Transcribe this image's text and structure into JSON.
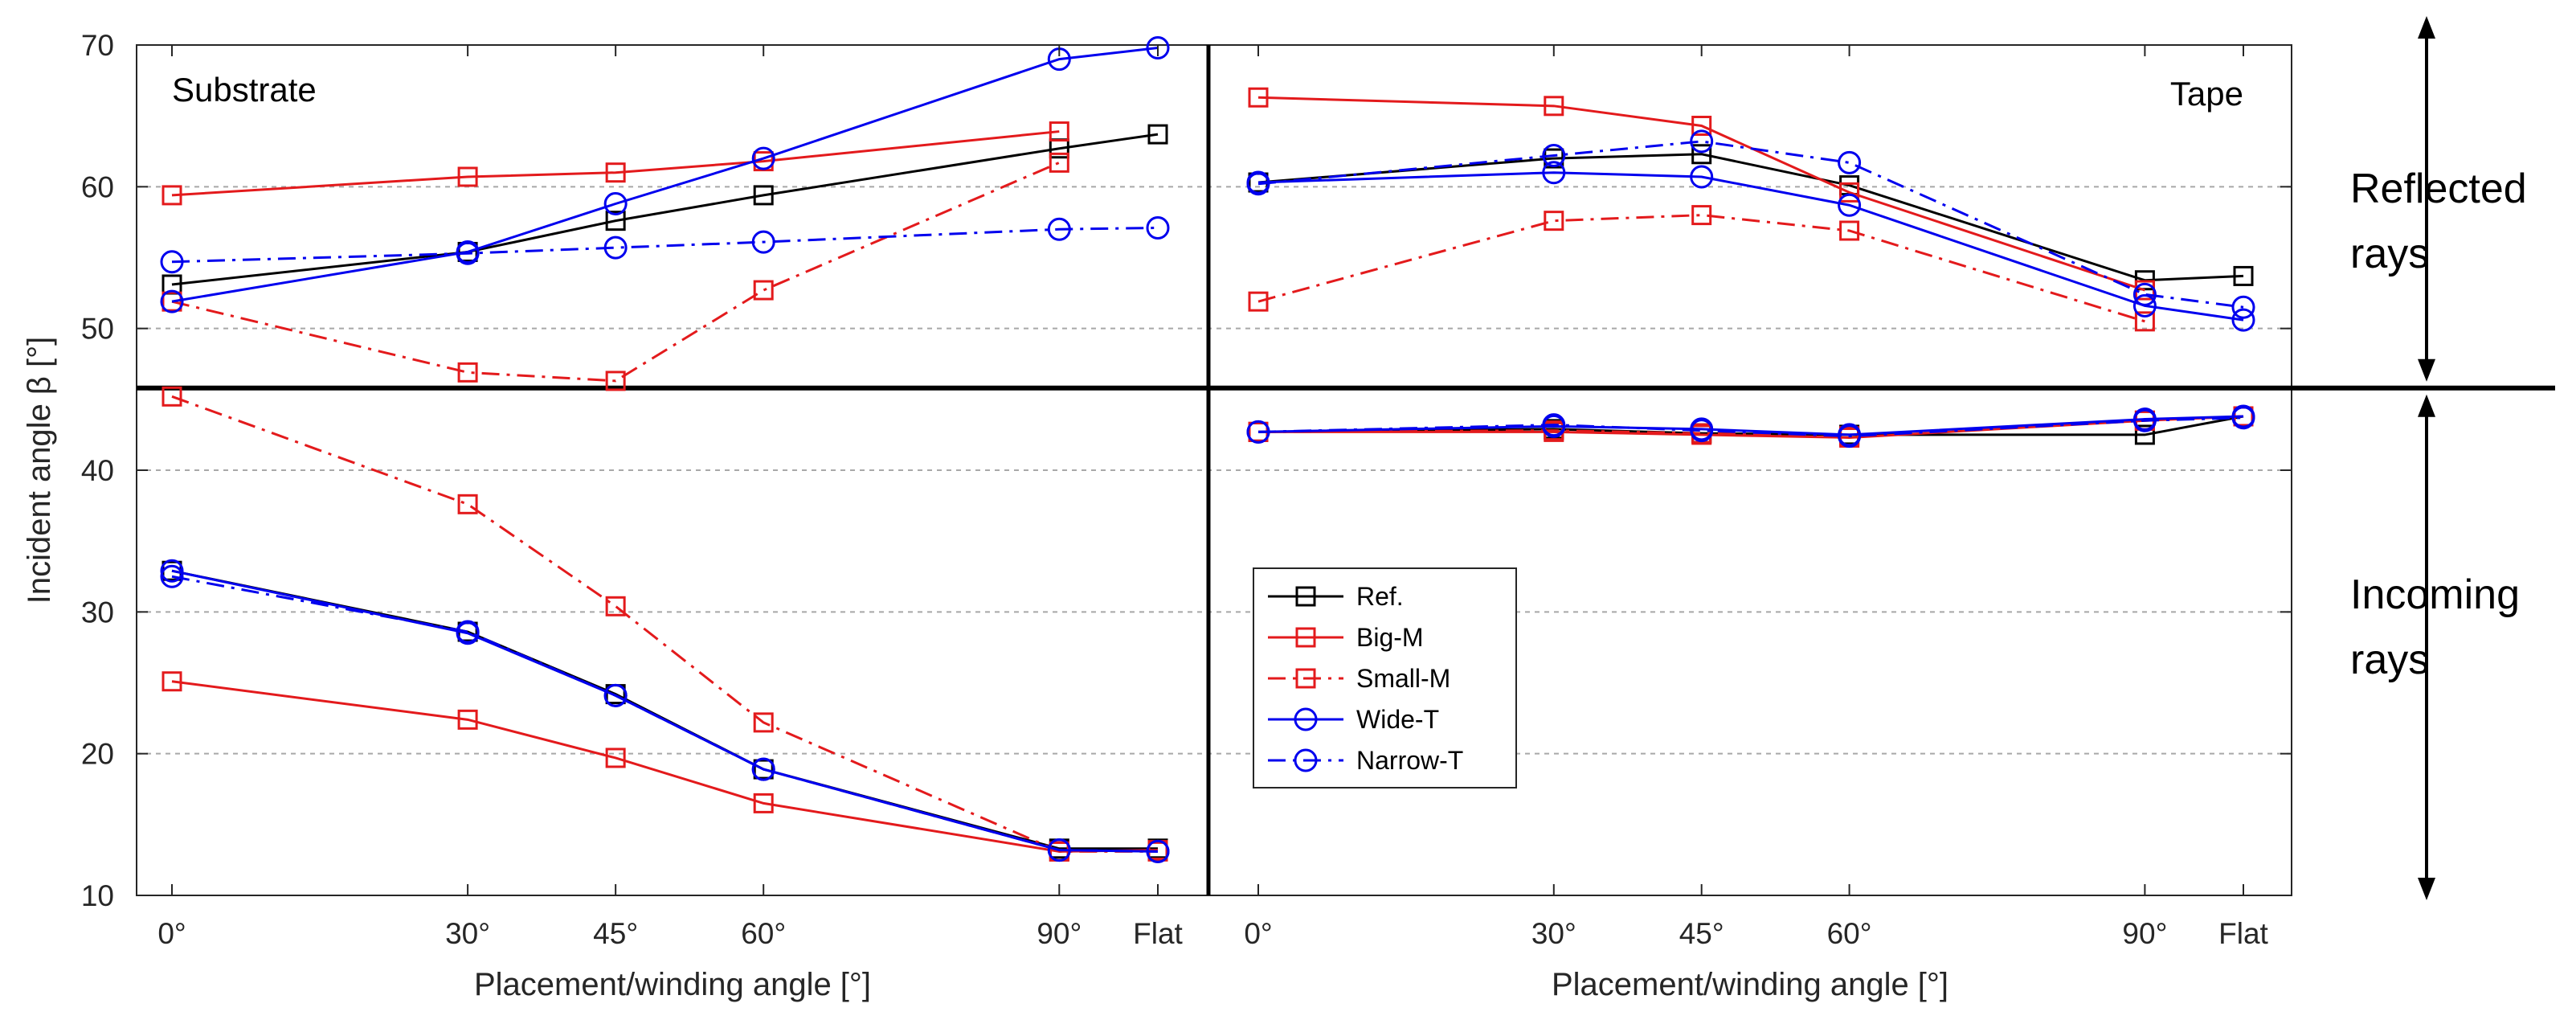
{
  "chart_data": {
    "type": "line",
    "ylabel": "Incident angle β [°]",
    "ylim": [
      10,
      70
    ],
    "yticks": [
      10,
      20,
      30,
      40,
      50,
      60,
      70
    ],
    "xlabel": "Placement/winding angle [°]",
    "categories": [
      "0°",
      "30°",
      "45°",
      "60°",
      "90°",
      "Flat"
    ],
    "x_positions": [
      0,
      30,
      45,
      60,
      90,
      100
    ],
    "split_value": 45.8,
    "side_labels": {
      "reflected": [
        "Reflected",
        "rays"
      ],
      "incoming": [
        "Incoming",
        "rays"
      ]
    },
    "legend": [
      {
        "name": "Ref.",
        "color": "#000000",
        "dash": "solid",
        "marker": "square"
      },
      {
        "name": "Big-M",
        "color": "#e31a1c",
        "dash": "solid",
        "marker": "square"
      },
      {
        "name": "Small-M",
        "color": "#e31a1c",
        "dash": "dashdot",
        "marker": "square"
      },
      {
        "name": "Wide-T",
        "color": "#0000ee",
        "dash": "solid",
        "marker": "circle"
      },
      {
        "name": "Narrow-T",
        "color": "#0000ee",
        "dash": "dashdot",
        "marker": "circle"
      }
    ],
    "panels": [
      {
        "title": "Substrate",
        "reflected": [
          {
            "name": "Ref.",
            "values": [
              53.1,
              55.4,
              57.6,
              59.4,
              62.7,
              63.7
            ]
          },
          {
            "name": "Big-M",
            "values": [
              59.4,
              60.7,
              61.0,
              61.8,
              63.9,
              null
            ]
          },
          {
            "name": "Small-M",
            "values": [
              51.9,
              46.9,
              46.3,
              52.7,
              61.7,
              null
            ]
          },
          {
            "name": "Wide-T",
            "values": [
              51.9,
              55.4,
              58.8,
              62.0,
              69.0,
              69.8
            ]
          },
          {
            "name": "Narrow-T",
            "values": [
              54.7,
              55.3,
              55.7,
              56.1,
              57.0,
              57.1
            ]
          }
        ],
        "incoming": [
          {
            "name": "Ref.",
            "values": [
              32.9,
              28.6,
              24.2,
              18.9,
              13.3,
              13.3
            ]
          },
          {
            "name": "Big-M",
            "values": [
              25.1,
              22.4,
              19.7,
              16.5,
              13.1,
              13.2
            ]
          },
          {
            "name": "Small-M",
            "values": [
              45.2,
              37.6,
              30.4,
              22.2,
              13.1,
              13.1
            ]
          },
          {
            "name": "Wide-T",
            "values": [
              32.9,
              28.5,
              24.1,
              18.9,
              13.2,
              13.1
            ]
          },
          {
            "name": "Narrow-T",
            "values": [
              32.5,
              28.6,
              24.1,
              18.9,
              13.2,
              13.1
            ]
          }
        ]
      },
      {
        "title": "Tape",
        "reflected": [
          {
            "name": "Ref.",
            "values": [
              60.3,
              62.0,
              62.3,
              60.1,
              53.4,
              53.7
            ]
          },
          {
            "name": "Big-M",
            "values": [
              66.3,
              65.7,
              64.3,
              59.6,
              52.7,
              null
            ]
          },
          {
            "name": "Small-M",
            "values": [
              51.9,
              57.6,
              58.0,
              56.9,
              50.5,
              null
            ]
          },
          {
            "name": "Wide-T",
            "values": [
              60.3,
              61.0,
              60.7,
              58.7,
              51.6,
              50.6
            ]
          },
          {
            "name": "Narrow-T",
            "values": [
              60.2,
              62.2,
              63.2,
              61.7,
              52.4,
              51.5
            ]
          }
        ],
        "incoming": [
          {
            "name": "Ref.",
            "values": [
              42.7,
              42.9,
              42.6,
              42.5,
              42.5,
              43.8
            ]
          },
          {
            "name": "Big-M",
            "values": [
              42.7,
              42.7,
              42.5,
              42.3,
              43.5,
              43.8
            ]
          },
          {
            "name": "Small-M",
            "values": [
              42.7,
              42.8,
              42.6,
              42.4,
              43.5,
              43.8
            ]
          },
          {
            "name": "Wide-T",
            "values": [
              42.7,
              43.1,
              42.9,
              42.5,
              43.6,
              43.8
            ]
          },
          {
            "name": "Narrow-T",
            "values": [
              42.7,
              43.2,
              42.8,
              42.4,
              43.5,
              43.7
            ]
          }
        ]
      }
    ]
  }
}
